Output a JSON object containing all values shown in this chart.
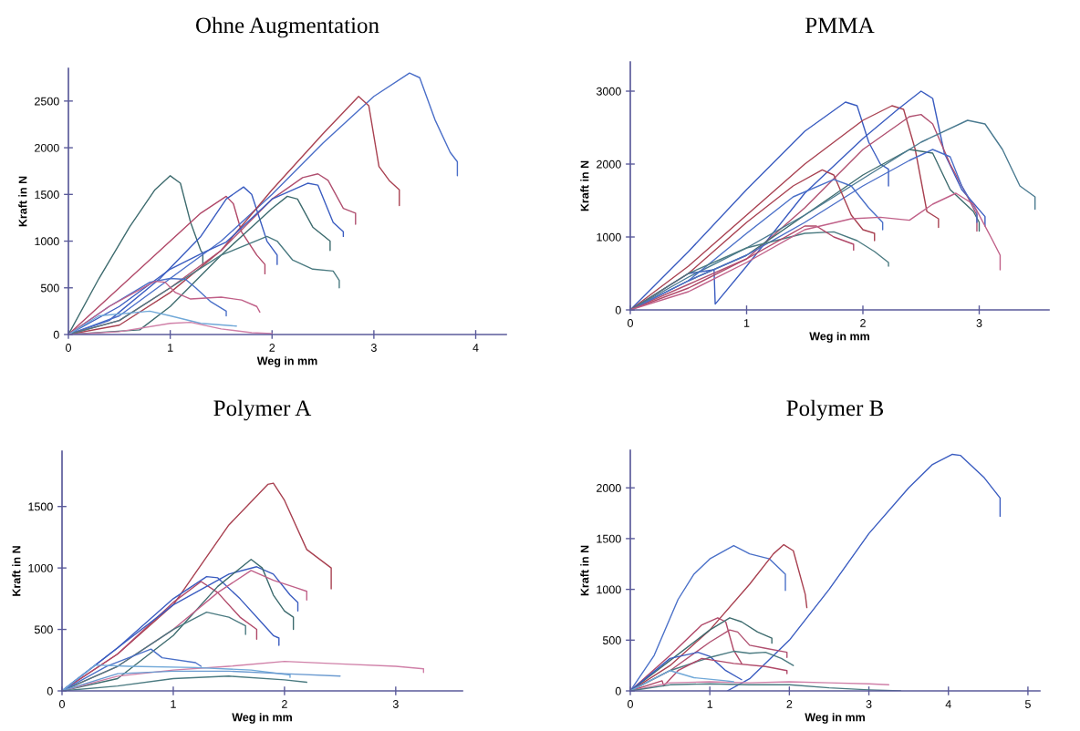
{
  "chart_data": [
    {
      "type": "line",
      "title": "Ohne Augmentation",
      "xlabel": "Weg in mm",
      "ylabel": "Kraft in N",
      "xlim": [
        0,
        4.3
      ],
      "ylim": [
        0,
        2850
      ],
      "xticks": [
        0,
        1,
        2,
        3,
        4
      ],
      "yticks": [
        0,
        500,
        1000,
        1500,
        2000,
        2500
      ],
      "grid": false,
      "series": [
        {
          "color": "#3d6b6e",
          "x": [
            0,
            0.3,
            0.6,
            0.85,
            1.0,
            1.1,
            1.2,
            1.3,
            1.32,
            1.32
          ],
          "values": [
            0,
            600,
            1150,
            1550,
            1700,
            1620,
            1200,
            900,
            870,
            750
          ]
        },
        {
          "color": "#b04868",
          "x": [
            0,
            0.5,
            1.0,
            1.3,
            1.55,
            1.62,
            1.7,
            1.85,
            1.93,
            1.93
          ],
          "values": [
            0,
            500,
            1000,
            1300,
            1480,
            1400,
            1100,
            850,
            750,
            650
          ]
        },
        {
          "color": "#3a5cc0",
          "x": [
            0,
            0.4,
            0.9,
            1.3,
            1.55,
            1.72,
            1.8,
            1.95,
            2.05,
            2.05
          ],
          "values": [
            0,
            150,
            600,
            1050,
            1450,
            1580,
            1500,
            1000,
            850,
            750
          ]
        },
        {
          "color": "#4a6ec8",
          "x": [
            0,
            0.5,
            1.0,
            1.5,
            2.0,
            2.5,
            3.0,
            3.35,
            3.45,
            3.6,
            3.75,
            3.82,
            3.82
          ],
          "values": [
            0,
            200,
            600,
            1000,
            1500,
            2050,
            2550,
            2800,
            2750,
            2300,
            1950,
            1850,
            1700
          ]
        },
        {
          "color": "#a84050",
          "x": [
            0,
            0.5,
            1.0,
            1.5,
            2.0,
            2.5,
            2.85,
            2.95,
            3.05,
            3.15,
            3.25,
            3.25
          ],
          "values": [
            0,
            100,
            450,
            900,
            1550,
            2150,
            2550,
            2450,
            1800,
            1650,
            1550,
            1380
          ]
        },
        {
          "color": "#b05070",
          "x": [
            0,
            0.5,
            1.0,
            1.5,
            2.0,
            2.3,
            2.45,
            2.55,
            2.7,
            2.82,
            2.82
          ],
          "values": [
            0,
            150,
            500,
            900,
            1450,
            1680,
            1720,
            1650,
            1350,
            1300,
            1180
          ]
        },
        {
          "color": "#3a5cc0",
          "x": [
            0,
            0.5,
            1.0,
            1.33,
            1.55,
            2.0,
            2.35,
            2.45,
            2.6,
            2.7,
            2.7
          ],
          "values": [
            0,
            300,
            700,
            880,
            990,
            1450,
            1620,
            1600,
            1200,
            1100,
            1050
          ]
        },
        {
          "color": "#3d6b6e",
          "x": [
            0,
            0.7,
            1.0,
            1.5,
            2.0,
            2.15,
            2.25,
            2.4,
            2.57,
            2.57
          ],
          "values": [
            0,
            50,
            300,
            850,
            1350,
            1480,
            1450,
            1150,
            1000,
            900
          ]
        },
        {
          "color": "#4a7a80",
          "x": [
            0,
            0.5,
            1.0,
            1.5,
            1.95,
            2.05,
            2.2,
            2.4,
            2.6,
            2.66,
            2.66
          ],
          "values": [
            0,
            150,
            500,
            850,
            1050,
            1000,
            800,
            700,
            680,
            580,
            500
          ]
        },
        {
          "color": "#4a70c8",
          "x": [
            0,
            0.4,
            0.8,
            1.0,
            1.15,
            1.25,
            1.4,
            1.55,
            1.55
          ],
          "values": [
            0,
            300,
            560,
            600,
            590,
            500,
            350,
            250,
            200
          ]
        },
        {
          "color": "#c06088",
          "x": [
            0,
            0.4,
            0.85,
            0.95,
            1.05,
            1.2,
            1.5,
            1.7,
            1.85,
            1.88
          ],
          "values": [
            0,
            300,
            570,
            560,
            450,
            380,
            400,
            370,
            300,
            240
          ]
        },
        {
          "color": "#70a8d8",
          "x": [
            0,
            0.3,
            0.8,
            1.0,
            1.3,
            1.65
          ],
          "values": [
            0,
            200,
            250,
            200,
            120,
            90
          ]
        },
        {
          "color": "#d080a8",
          "x": [
            0,
            0.5,
            1.0,
            1.2,
            1.5,
            1.8,
            2.0
          ],
          "values": [
            0,
            30,
            120,
            130,
            60,
            20,
            10
          ]
        }
      ]
    },
    {
      "type": "line",
      "title": "PMMA",
      "xlabel": "Weg in mm",
      "ylabel": "Kraft in N",
      "xlim": [
        0,
        3.6
      ],
      "ylim": [
        0,
        3400
      ],
      "xticks": [
        0,
        1,
        2,
        3
      ],
      "yticks": [
        0,
        1000,
        2000,
        3000
      ],
      "grid": false,
      "series": [
        {
          "color": "#3a5cc0",
          "x": [
            0,
            0.5,
            1.0,
            1.5,
            1.85,
            1.95,
            2.05,
            2.15,
            2.22,
            2.22
          ],
          "values": [
            0,
            800,
            1650,
            2450,
            2850,
            2800,
            2300,
            2000,
            1930,
            1700
          ]
        },
        {
          "color": "#a84050",
          "x": [
            0,
            0.5,
            1.0,
            1.5,
            2.0,
            2.25,
            2.35,
            2.45,
            2.55,
            2.65,
            2.65
          ],
          "values": [
            0,
            600,
            1300,
            2000,
            2600,
            2800,
            2750,
            2200,
            1350,
            1250,
            1130
          ]
        },
        {
          "color": "#3a5cc0",
          "x": [
            0,
            0.5,
            0.72,
            0.73,
            1.0,
            1.5,
            2.0,
            2.3,
            2.5,
            2.6,
            2.7,
            2.85,
            3.05,
            3.05
          ],
          "values": [
            0,
            500,
            550,
            80,
            600,
            1600,
            2350,
            2750,
            3000,
            2900,
            2150,
            1650,
            1280,
            1150
          ]
        },
        {
          "color": "#b05070",
          "x": [
            0,
            0.5,
            1.0,
            1.5,
            2.0,
            2.4,
            2.5,
            2.6,
            2.75,
            2.9,
            2.98,
            2.98
          ],
          "values": [
            0,
            350,
            700,
            1400,
            2200,
            2650,
            2680,
            2550,
            2000,
            1550,
            1300,
            1080
          ]
        },
        {
          "color": "#3d6b6e",
          "x": [
            0,
            0.5,
            1.0,
            1.5,
            2.0,
            2.4,
            2.6,
            2.75,
            2.95,
            3.0,
            3.0
          ],
          "values": [
            0,
            400,
            750,
            1300,
            1850,
            2200,
            2150,
            1650,
            1350,
            1200,
            1080
          ]
        },
        {
          "color": "#4a7a90",
          "x": [
            0,
            0.5,
            1.0,
            1.5,
            2.0,
            2.5,
            2.9,
            3.05,
            3.2,
            3.35,
            3.48,
            3.48
          ],
          "values": [
            0,
            450,
            850,
            1300,
            1800,
            2300,
            2600,
            2550,
            2200,
            1700,
            1550,
            1380
          ]
        },
        {
          "color": "#4a6ec8",
          "x": [
            0,
            0.5,
            1.0,
            1.5,
            2.0,
            2.4,
            2.6,
            2.75,
            2.85,
            2.98,
            2.98
          ],
          "values": [
            0,
            400,
            750,
            1200,
            1700,
            2050,
            2200,
            2100,
            1700,
            1350,
            1200
          ]
        },
        {
          "color": "#a84050",
          "x": [
            0,
            0.5,
            1.0,
            1.4,
            1.65,
            1.75,
            1.9,
            2.0,
            2.1,
            2.1
          ],
          "values": [
            0,
            500,
            1200,
            1700,
            1920,
            1850,
            1300,
            1100,
            1050,
            950
          ]
        },
        {
          "color": "#4a70c8",
          "x": [
            0,
            0.5,
            1.0,
            1.4,
            1.75,
            1.9,
            2.05,
            2.17,
            2.17
          ],
          "values": [
            0,
            400,
            1050,
            1550,
            1790,
            1700,
            1400,
            1200,
            1100
          ]
        },
        {
          "color": "#4a7a80",
          "x": [
            0,
            0.5,
            1.0,
            1.5,
            1.75,
            1.95,
            2.1,
            2.22,
            2.22
          ],
          "values": [
            0,
            500,
            850,
            1050,
            1070,
            950,
            800,
            650,
            600
          ]
        },
        {
          "color": "#b04868",
          "x": [
            0,
            0.5,
            1.0,
            1.5,
            1.6,
            1.75,
            1.92,
            1.92
          ],
          "values": [
            0,
            300,
            700,
            1150,
            1150,
            1000,
            900,
            820
          ]
        },
        {
          "color": "#c06088",
          "x": [
            0,
            0.5,
            1.0,
            1.5,
            1.9,
            2.15,
            2.4,
            2.6,
            2.8,
            2.95,
            3.1,
            3.18,
            3.18
          ],
          "values": [
            0,
            250,
            650,
            1100,
            1250,
            1270,
            1230,
            1450,
            1600,
            1450,
            1000,
            750,
            550
          ]
        }
      ]
    },
    {
      "type": "line",
      "title": "Polymer A",
      "xlabel": "Weg in mm",
      "ylabel": "Kraft in N",
      "xlim": [
        0,
        3.6
      ],
      "ylim": [
        0,
        1950
      ],
      "xticks": [
        0,
        1,
        2,
        3
      ],
      "yticks": [
        0,
        500,
        1000,
        1500
      ],
      "grid": false,
      "series": [
        {
          "color": "#a84050",
          "x": [
            0,
            0.5,
            1.0,
            1.5,
            1.85,
            1.9,
            2.0,
            2.2,
            2.42,
            2.42
          ],
          "values": [
            0,
            300,
            700,
            1350,
            1680,
            1690,
            1550,
            1150,
            1000,
            830
          ]
        },
        {
          "color": "#3a5cc0",
          "x": [
            0,
            0.5,
            1.0,
            1.3,
            1.4,
            1.6,
            1.8,
            1.9,
            1.95,
            1.95
          ],
          "values": [
            0,
            350,
            750,
            930,
            920,
            750,
            550,
            450,
            430,
            370
          ]
        },
        {
          "color": "#b04868",
          "x": [
            0,
            0.5,
            1.0,
            1.25,
            1.4,
            1.6,
            1.75,
            1.75
          ],
          "values": [
            0,
            300,
            720,
            890,
            800,
            600,
            500,
            420
          ]
        },
        {
          "color": "#3a5cc0",
          "x": [
            0,
            0.5,
            1.0,
            1.5,
            1.75,
            1.9,
            2.05,
            2.12,
            2.12
          ],
          "values": [
            0,
            350,
            700,
            950,
            1010,
            950,
            780,
            720,
            650
          ]
        },
        {
          "color": "#3d6b6e",
          "x": [
            0,
            0.5,
            1.0,
            1.4,
            1.7,
            1.8,
            1.9,
            2.0,
            2.08,
            2.08
          ],
          "values": [
            0,
            100,
            450,
            850,
            1070,
            1000,
            780,
            650,
            600,
            500
          ]
        },
        {
          "color": "#c06088",
          "x": [
            0,
            0.5,
            1.0,
            1.4,
            1.7,
            1.9,
            2.1,
            2.2,
            2.2
          ],
          "values": [
            0,
            200,
            500,
            800,
            980,
            900,
            840,
            810,
            740
          ]
        },
        {
          "color": "#4a7a80",
          "x": [
            0,
            0.5,
            1.0,
            1.3,
            1.5,
            1.65,
            1.65
          ],
          "values": [
            0,
            200,
            500,
            640,
            600,
            530,
            460
          ]
        },
        {
          "color": "#4a70c8",
          "x": [
            0,
            0.4,
            0.8,
            0.9,
            1.2,
            1.25
          ],
          "values": [
            0,
            200,
            340,
            270,
            230,
            200
          ]
        },
        {
          "color": "#d080a8",
          "x": [
            0,
            0.5,
            1.0,
            1.5,
            2.0,
            2.5,
            3.0,
            3.25,
            3.25
          ],
          "values": [
            0,
            120,
            170,
            200,
            240,
            220,
            200,
            180,
            150
          ]
        },
        {
          "color": "#70a8d8",
          "x": [
            0,
            0.3,
            0.6,
            1.2,
            1.7,
            2.05,
            2.05
          ],
          "values": [
            0,
            210,
            200,
            190,
            170,
            130,
            110
          ]
        },
        {
          "color": "#6a9ad0",
          "x": [
            0,
            0.5,
            1.0,
            1.5,
            2.0,
            2.5
          ],
          "values": [
            0,
            140,
            160,
            160,
            140,
            120
          ]
        },
        {
          "color": "#4a7a80",
          "x": [
            0,
            0.5,
            1.0,
            1.5,
            2.0,
            2.2
          ],
          "values": [
            0,
            40,
            100,
            120,
            90,
            70
          ]
        }
      ]
    },
    {
      "type": "line",
      "title": "Polymer B",
      "xlabel": "Weg in mm",
      "ylabel": "Kraft in N",
      "xlim": [
        0,
        5.15
      ],
      "ylim": [
        0,
        2370
      ],
      "xticks": [
        0,
        1,
        2,
        3,
        4,
        5
      ],
      "yticks": [
        0,
        500,
        1000,
        1500,
        2000
      ],
      "grid": false,
      "series": [
        {
          "color": "#3a5cc0",
          "x": [
            1.22,
            1.5,
            2.0,
            2.5,
            3.0,
            3.5,
            3.8,
            4.05,
            4.15,
            4.45,
            4.65,
            4.65
          ],
          "values": [
            0,
            120,
            500,
            1000,
            1550,
            2000,
            2230,
            2330,
            2320,
            2100,
            1900,
            1720
          ]
        },
        {
          "color": "#4a70c8",
          "x": [
            0,
            0.3,
            0.6,
            0.8,
            1.0,
            1.3,
            1.5,
            1.75,
            1.95,
            1.95
          ],
          "values": [
            0,
            350,
            900,
            1150,
            1300,
            1430,
            1350,
            1300,
            1150,
            990
          ]
        },
        {
          "color": "#a84050",
          "x": [
            0,
            0.5,
            1.0,
            1.5,
            1.8,
            1.93,
            2.05,
            2.2,
            2.22
          ],
          "values": [
            0,
            250,
            600,
            1050,
            1350,
            1440,
            1380,
            950,
            820
          ]
        },
        {
          "color": "#b04868",
          "x": [
            0,
            0.5,
            0.9,
            1.1,
            1.2,
            1.3,
            1.4
          ],
          "values": [
            0,
            350,
            650,
            720,
            680,
            400,
            270
          ]
        },
        {
          "color": "#3d6b6e",
          "x": [
            0,
            0.5,
            1.0,
            1.25,
            1.4,
            1.6,
            1.78,
            1.78
          ],
          "values": [
            0,
            300,
            600,
            720,
            680,
            580,
            520,
            470
          ]
        },
        {
          "color": "#b05070",
          "x": [
            0,
            0.5,
            1.0,
            1.25,
            1.35,
            1.5,
            1.7,
            1.97,
            1.97
          ],
          "values": [
            0,
            200,
            480,
            600,
            580,
            450,
            420,
            380,
            330
          ]
        },
        {
          "color": "#3a5cc0",
          "x": [
            0,
            0.5,
            0.85,
            1.0,
            1.2,
            1.4
          ],
          "values": [
            0,
            320,
            380,
            340,
            200,
            110
          ]
        },
        {
          "color": "#4a7a80",
          "x": [
            0,
            0.5,
            1.0,
            1.3,
            1.5,
            1.7,
            1.9,
            2.05
          ],
          "values": [
            0,
            200,
            330,
            390,
            370,
            380,
            320,
            250
          ]
        },
        {
          "color": "#b04868",
          "x": [
            0,
            0.4,
            0.42,
            0.6,
            0.9,
            1.3,
            1.7,
            1.97,
            1.97
          ],
          "values": [
            0,
            100,
            50,
            200,
            320,
            270,
            240,
            200,
            170
          ]
        },
        {
          "color": "#d080a8",
          "x": [
            0,
            0.5,
            1.0,
            1.5,
            2.0,
            2.5,
            3.0,
            3.25
          ],
          "values": [
            0,
            80,
            90,
            80,
            90,
            80,
            70,
            60
          ]
        },
        {
          "color": "#70a8d8",
          "x": [
            0,
            0.5,
            0.8,
            1.2,
            1.3
          ],
          "values": [
            0,
            200,
            130,
            100,
            90
          ]
        },
        {
          "color": "#4a7a80",
          "x": [
            0,
            0.5,
            1.0,
            1.5,
            2.0,
            2.5,
            3.0,
            3.4
          ],
          "values": [
            0,
            60,
            70,
            60,
            60,
            30,
            10,
            0
          ]
        }
      ]
    }
  ]
}
